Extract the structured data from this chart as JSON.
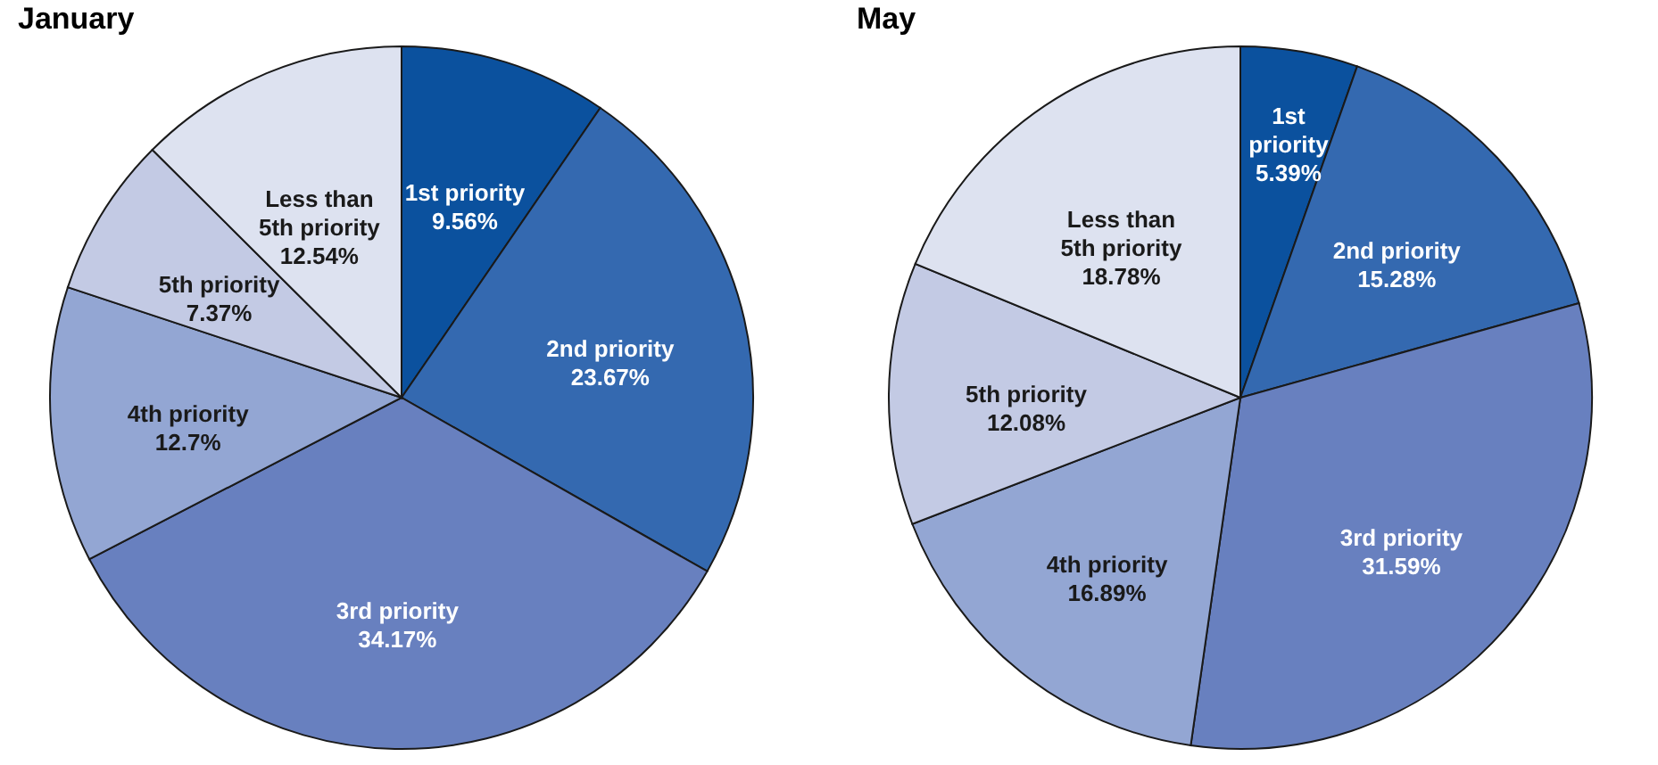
{
  "chart_data": [
    {
      "type": "pie",
      "title": "January",
      "categories": [
        "1st priority",
        "2nd priority",
        "3rd priority",
        "4th priority",
        "5th priority",
        "Less than 5th priority"
      ],
      "values": [
        9.56,
        23.67,
        34.17,
        12.7,
        7.37,
        12.54
      ],
      "value_labels": [
        "9.56%",
        "23.67%",
        "34.17%",
        "12.7%",
        "7.37%",
        "12.54%"
      ],
      "colors": [
        "#0b519e",
        "#3469b0",
        "#6880bf",
        "#93a6d3",
        "#c3cae4",
        "#dde2f0"
      ],
      "legend": false
    },
    {
      "type": "pie",
      "title": "May",
      "categories": [
        "1st priority",
        "2nd priority",
        "3rd priority",
        "4th priority",
        "5th priority",
        "Less than 5th priority"
      ],
      "values": [
        5.39,
        15.28,
        31.59,
        16.89,
        12.08,
        18.78
      ],
      "value_labels": [
        "5.39%",
        "15.28%",
        "31.59%",
        "16.89%",
        "12.08%",
        "18.78%"
      ],
      "colors": [
        "#0b519e",
        "#3469b0",
        "#6880bf",
        "#93a6d3",
        "#c3cae4",
        "#dde2f0"
      ],
      "legend": false
    }
  ]
}
